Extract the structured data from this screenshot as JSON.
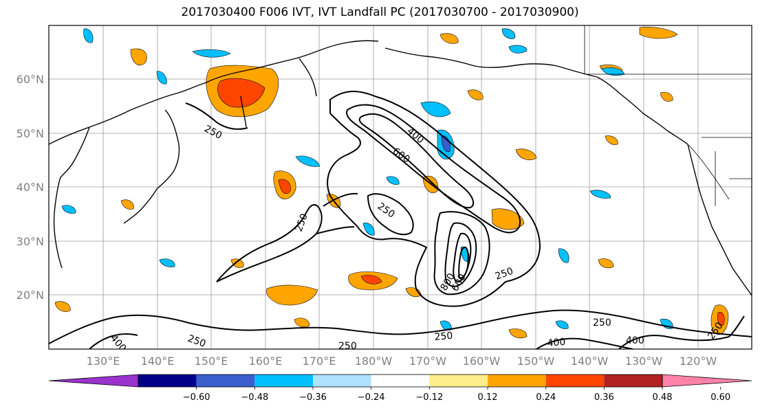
{
  "title": "2017030400 F006 IVT, IVT Landfall PC (2017030700 - 2017030900)",
  "lat_labels": [
    "60°N",
    "50°N",
    "40°N",
    "30°N",
    "20°N"
  ],
  "lon_labels": [
    "130°E",
    "140°E",
    "150°E",
    "160°E",
    "170°E",
    "180°W",
    "170°W",
    "160°W",
    "150°W",
    "140°W",
    "130°W",
    "120°W"
  ],
  "contour_labels": [
    "250",
    "400",
    "600",
    "250",
    "250",
    "800",
    "600",
    "250",
    "400",
    "250",
    "250",
    "250",
    "400",
    "250",
    "400",
    "250"
  ],
  "colorbar": {
    "colors": [
      "#9933cc",
      "#00008b",
      "#3a5fcd",
      "#00bfff",
      "#b0e2ff",
      "#ffffff",
      "#ffec8b",
      "#ffa500",
      "#ff4500",
      "#b22222",
      "#ff82ab"
    ],
    "tick_labels": [
      "−0.60",
      "−0.48",
      "−0.36",
      "−0.24",
      "−0.12",
      "0.12",
      "0.24",
      "0.36",
      "0.48",
      "0.60"
    ]
  }
}
